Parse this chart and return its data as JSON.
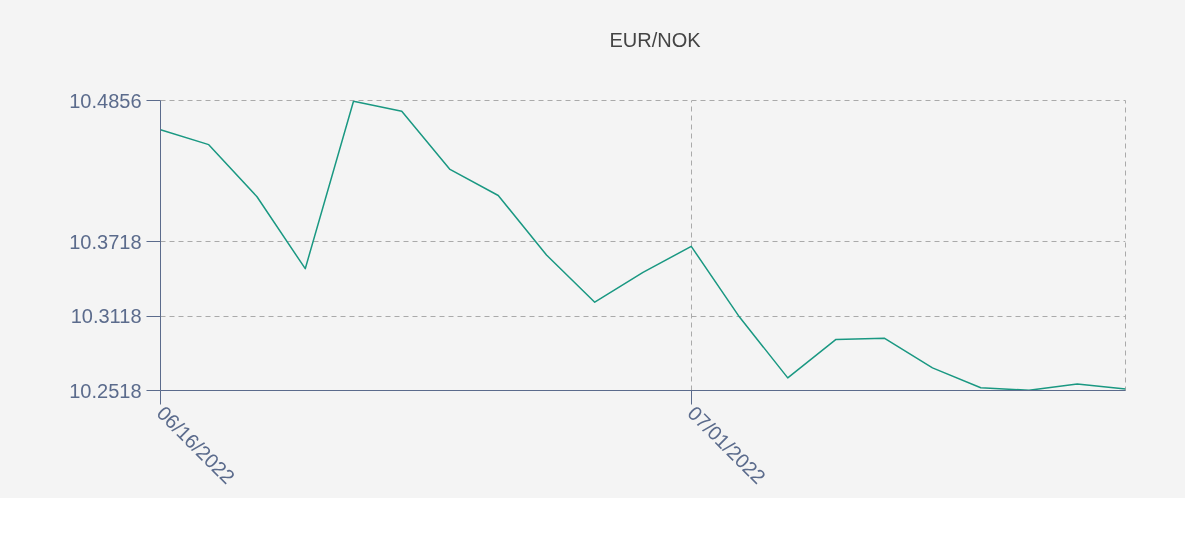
{
  "chart_data": {
    "type": "line",
    "categories": [
      "06/16/2022",
      null,
      null,
      null,
      null,
      null,
      null,
      null,
      null,
      null,
      null,
      "07/01/2022",
      null,
      null,
      null,
      null,
      null,
      null,
      null,
      null,
      null
    ],
    "series": [
      {
        "name": "EUR/NOK",
        "color": "#1a9882",
        "values": [
          10.462,
          10.45,
          10.408,
          10.35,
          10.485,
          10.477,
          10.43,
          10.409,
          10.361,
          10.323,
          10.347,
          10.368,
          10.311,
          10.262,
          10.293,
          10.294,
          10.27,
          10.254,
          10.252,
          10.257,
          10.253
        ]
      }
    ],
    "ylim": [
      10.2518,
      10.4856
    ],
    "yticks": [
      10.2518,
      10.3118,
      10.3718,
      10.4856
    ],
    "grid": true,
    "legend": "top",
    "line_style": "solid"
  }
}
